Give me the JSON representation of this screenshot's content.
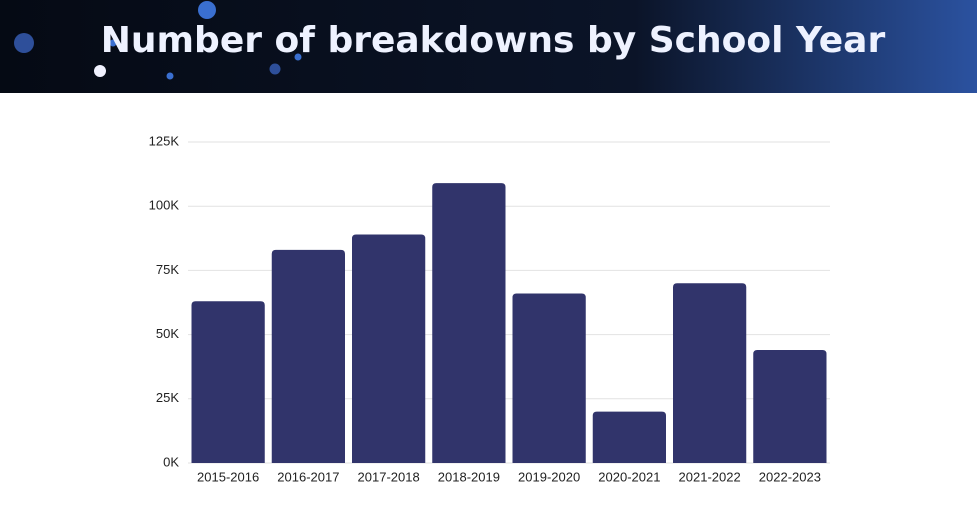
{
  "chart_data": {
    "type": "bar",
    "title": "Number of breakdowns by School Year",
    "categories": [
      "2015-2016",
      "2016-2017",
      "2017-2018",
      "2018-2019",
      "2019-2020",
      "2020-2021",
      "2021-2022",
      "2022-2023"
    ],
    "values": [
      63000,
      83000,
      89000,
      109000,
      66000,
      20000,
      70000,
      44000
    ],
    "color": "#31346b",
    "ylim": [
      0,
      125000
    ],
    "yticks": [
      {
        "value": 0,
        "label": "0K"
      },
      {
        "value": 25000,
        "label": "25K"
      },
      {
        "value": 50000,
        "label": "50K"
      },
      {
        "value": 75000,
        "label": "75K"
      },
      {
        "value": 100000,
        "label": "100K"
      },
      {
        "value": 125000,
        "label": "125K"
      }
    ],
    "grid": true
  }
}
